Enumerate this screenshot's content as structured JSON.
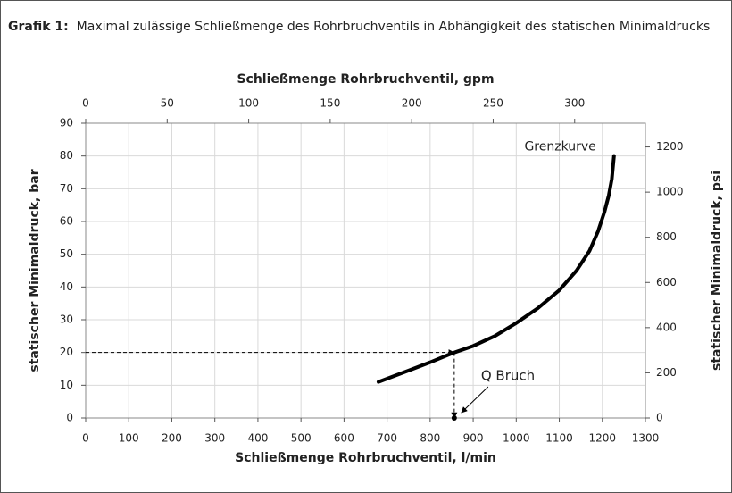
{
  "chart_data": {
    "type": "line",
    "caption_label": "Grafik 1:",
    "caption": "Maximal zulässige Schließmenge des Rohrbruchventils in Abhängigkeit des statischen Minimaldrucks",
    "xlabel": "Schließmenge Rohrbruchventil, l/min",
    "x2label": "Schließmenge Rohrbruchventil, gpm",
    "ylabel": "statischer Minimaldruck, bar",
    "y2label": "statischer Minimaldruck, psi",
    "xlim": [
      0,
      1300
    ],
    "xticks": [
      0,
      100,
      200,
      300,
      400,
      500,
      600,
      700,
      800,
      900,
      1000,
      1100,
      1200,
      1300
    ],
    "x2lim": [
      0,
      343.4
    ],
    "x2ticks": [
      0,
      50,
      100,
      150,
      200,
      250,
      300
    ],
    "ylim": [
      0,
      90
    ],
    "yticks": [
      0,
      10,
      20,
      30,
      40,
      50,
      60,
      70,
      80,
      90
    ],
    "y2lim": [
      0,
      1305
    ],
    "y2ticks": [
      0,
      200,
      400,
      600,
      800,
      1000,
      1200
    ],
    "grid": true,
    "series": [
      {
        "name": "Grenzkurve",
        "color": "#000000",
        "x": [
          680,
          750,
          800,
          850,
          900,
          950,
          1000,
          1050,
          1100,
          1140,
          1170,
          1190,
          1205,
          1215,
          1222,
          1227
        ],
        "values": [
          11,
          14.5,
          17,
          19.7,
          22,
          25,
          29,
          33.5,
          39,
          45,
          51,
          57,
          63,
          68,
          73,
          80
        ]
      }
    ],
    "reference": {
      "label": "Q Bruch",
      "x": 856,
      "y": 20
    }
  }
}
